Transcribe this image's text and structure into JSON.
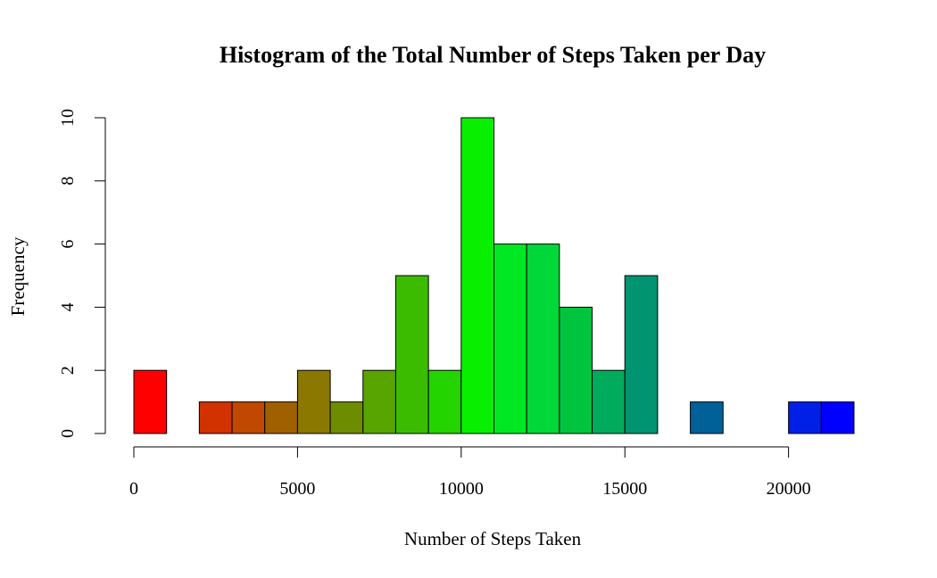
{
  "chart_data": {
    "type": "bar",
    "title": "Histogram of the Total Number of Steps Taken per Day",
    "xlabel": "Number of Steps Taken",
    "ylabel": "Frequency",
    "bin_width": 1000,
    "bin_starts": [
      0,
      1000,
      2000,
      3000,
      4000,
      5000,
      6000,
      7000,
      8000,
      9000,
      10000,
      11000,
      12000,
      13000,
      14000,
      15000,
      16000,
      17000,
      18000,
      19000,
      20000,
      21000
    ],
    "values": [
      2,
      0,
      1,
      1,
      1,
      2,
      1,
      2,
      5,
      2,
      10,
      6,
      6,
      4,
      2,
      5,
      0,
      1,
      0,
      0,
      1,
      1
    ],
    "colors": [
      "#FF0000",
      "#E61A00",
      "#D13200",
      "#C04800",
      "#A06000",
      "#8A7800",
      "#6E8C00",
      "#58A400",
      "#3CBC00",
      "#24D400",
      "#08F000",
      "#00E824",
      "#00D83A",
      "#00C43E",
      "#00AC5C",
      "#009470",
      "#007C8A",
      "#006098",
      "#0046B4",
      "#0030CC",
      "#0020E8",
      "#0000FF"
    ],
    "xlim": [
      0,
      22000
    ],
    "ylim": [
      0,
      10
    ],
    "x_ticks": [
      0,
      5000,
      10000,
      15000,
      20000
    ],
    "y_ticks": [
      0,
      2,
      4,
      6,
      8,
      10
    ],
    "grid": false,
    "legend": "none"
  }
}
